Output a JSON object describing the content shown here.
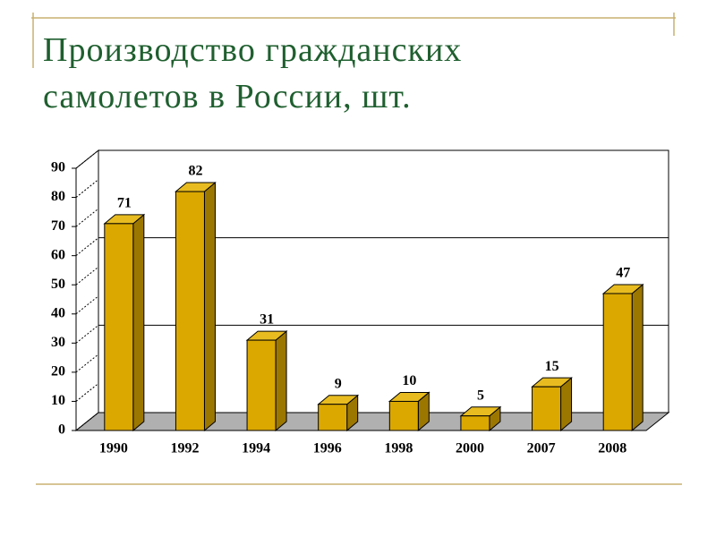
{
  "chart_data": {
    "type": "bar3d",
    "title": "Производство гражданских самолетов в России, шт.",
    "categories": [
      "1990",
      "1992",
      "1994",
      "1996",
      "1998",
      "2000",
      "2007",
      "2008"
    ],
    "values": [
      71,
      82,
      31,
      9,
      10,
      5,
      15,
      47
    ],
    "color": "#dba800",
    "ylim": [
      0,
      90
    ],
    "yticks": [
      0,
      10,
      20,
      30,
      40,
      50,
      60,
      70,
      80,
      90
    ],
    "grid": true
  }
}
